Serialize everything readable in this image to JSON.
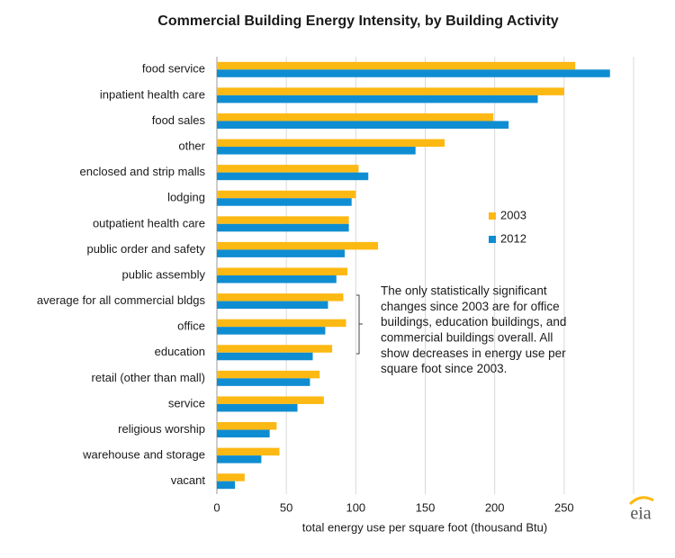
{
  "chart_data": {
    "type": "hbar",
    "title": "Commercial Building Energy Intensity, by Building Activity",
    "xlabel": "total energy use per square foot (thousand Btu)",
    "categories": [
      "food service",
      "inpatient health care",
      "food sales",
      "other",
      "enclosed and strip malls",
      "lodging",
      "outpatient health care",
      "public order and safety",
      "public assembly",
      "average for all commercial bldgs",
      "office",
      "education",
      "retail (other than mall)",
      "service",
      "religious worship",
      "warehouse and storage",
      "vacant"
    ],
    "series": [
      {
        "name": "2003",
        "color": "#fdb913",
        "values": [
          258,
          250,
          199,
          164,
          102,
          100,
          95,
          116,
          94,
          91,
          93,
          83,
          74,
          77,
          43,
          45,
          20
        ]
      },
      {
        "name": "2012",
        "color": "#0f8dd2",
        "values": [
          283,
          231,
          210,
          143,
          109,
          97,
          95,
          92,
          86,
          80,
          78,
          69,
          67,
          58,
          38,
          32,
          13
        ]
      }
    ],
    "xlim": [
      0,
      300
    ],
    "xticks": [
      0,
      50,
      100,
      150,
      200,
      250
    ],
    "grid": true,
    "legend": "right",
    "annotation": [
      "The only statistically significant",
      "changes since 2003 are for office",
      "buildings, education buildings, and",
      "commercial buildings overall. All",
      "show decreases in energy use per",
      "square foot since 2003."
    ],
    "logo": "eia"
  }
}
